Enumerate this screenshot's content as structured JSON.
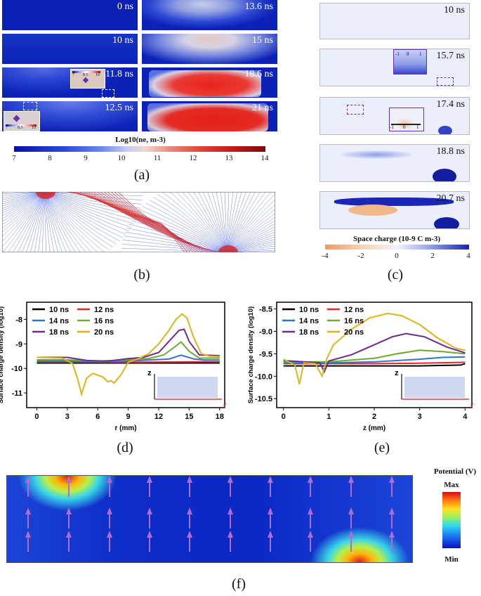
{
  "panel_a": {
    "frames_left": [
      "0 ns",
      "10 ns",
      "11.8 ns",
      "12.5 ns"
    ],
    "frames_right": [
      "13.6 ns",
      "15 ns",
      "18.6 ns",
      "21 ns"
    ],
    "inset_ticks": [
      "7",
      "8.5",
      "10"
    ],
    "colorbar_title": "Log10(ne, m-3)",
    "colorbar_ticks": [
      "7",
      "8",
      "9",
      "10",
      "11",
      "12",
      "13",
      "14"
    ],
    "caption": "(a)"
  },
  "panel_b": {
    "caption": "(b)"
  },
  "panel_c": {
    "frames": [
      "10 ns",
      "15.7 ns",
      "17.4 ns",
      "18.8 ns",
      "20.7 ns"
    ],
    "inset_ticks": [
      "-1",
      "0",
      "1"
    ],
    "colorbar_title": "Space charge (10-9 C m-3)",
    "colorbar_ticks": [
      "-4",
      "-2",
      "0",
      "2",
      "4"
    ],
    "caption": "(c)"
  },
  "chart_data": [
    {
      "type": "line",
      "title": "",
      "xlabel": "r (mm)",
      "ylabel": "Surface charge density (log10)",
      "xlim": [
        -1,
        18.5
      ],
      "ylim": [
        -11.6,
        -7.3
      ],
      "xticks": [
        "0",
        "3",
        "6",
        "9",
        "12",
        "15",
        "18"
      ],
      "yticks": [
        "-8",
        "-9",
        "-10",
        "-11"
      ],
      "axis_icon": [
        "z",
        "r"
      ],
      "caption": "(d)",
      "series": [
        {
          "name": "10 ns",
          "color": "#000000",
          "x": [
            0,
            4,
            8,
            12,
            16,
            18
          ],
          "y": [
            -9.78,
            -9.78,
            -9.78,
            -9.78,
            -9.78,
            -9.78
          ]
        },
        {
          "name": "12 ns",
          "color": "#e8262b",
          "x": [
            0,
            4,
            8,
            12,
            16,
            18
          ],
          "y": [
            -9.74,
            -9.74,
            -9.75,
            -9.74,
            -9.73,
            -9.73
          ]
        },
        {
          "name": "14 ns",
          "color": "#2f73d1",
          "x": [
            0,
            3,
            6,
            9,
            11,
            13,
            14.2,
            15.5,
            16.5,
            18
          ],
          "y": [
            -9.7,
            -9.7,
            -9.72,
            -9.7,
            -9.66,
            -9.62,
            -9.46,
            -9.62,
            -9.66,
            -9.66
          ]
        },
        {
          "name": "16 ns",
          "color": "#6aaa2e",
          "x": [
            0,
            3,
            6,
            9,
            11,
            12.5,
            13.5,
            14.2,
            15,
            16,
            18
          ],
          "y": [
            -9.65,
            -9.65,
            -9.7,
            -9.65,
            -9.6,
            -9.45,
            -9.15,
            -8.92,
            -9.3,
            -9.58,
            -9.58
          ]
        },
        {
          "name": "18 ns",
          "color": "#6f2a8e",
          "x": [
            0,
            3,
            5,
            7,
            9,
            10.5,
            12,
            13,
            14,
            14.5,
            15,
            16,
            18
          ],
          "y": [
            -9.55,
            -9.55,
            -9.68,
            -9.7,
            -9.6,
            -9.55,
            -9.35,
            -8.9,
            -8.45,
            -8.4,
            -8.9,
            -9.45,
            -9.48
          ]
        },
        {
          "name": "20 ns",
          "color": "#e0b31b",
          "x": [
            0,
            2.5,
            3.5,
            4.0,
            4.4,
            4.9,
            5.5,
            6.5,
            7.0,
            7.3,
            7.6,
            8.3,
            9,
            10,
            11,
            12,
            13,
            13.7,
            14.3,
            14.8,
            15.4,
            16.2,
            17,
            18
          ],
          "y": [
            -9.55,
            -9.58,
            -9.8,
            -10.4,
            -11.05,
            -10.4,
            -10.2,
            -10.35,
            -10.55,
            -10.5,
            -10.6,
            -10.25,
            -9.75,
            -9.6,
            -9.4,
            -9.0,
            -8.45,
            -8.0,
            -7.78,
            -7.95,
            -8.7,
            -9.4,
            -9.5,
            -9.52
          ]
        }
      ]
    },
    {
      "type": "line",
      "title": "",
      "xlabel": "z (mm)",
      "ylabel": "Surface charge density (log10)",
      "xlim": [
        -0.15,
        4.15
      ],
      "ylim": [
        -10.7,
        -8.35
      ],
      "xticks": [
        "0",
        "1",
        "2",
        "3",
        "4"
      ],
      "yticks": [
        "-8.5",
        "-9.0",
        "-9.5",
        "-10.0",
        "-10.5"
      ],
      "axis_icon": [
        "z",
        "r"
      ],
      "caption": "(e)",
      "series": [
        {
          "name": "10 ns",
          "color": "#000000",
          "x": [
            0,
            1,
            2,
            3,
            3.9,
            4
          ],
          "y": [
            -9.77,
            -9.77,
            -9.77,
            -9.77,
            -9.75,
            -9.72
          ]
        },
        {
          "name": "12 ns",
          "color": "#e8262b",
          "x": [
            0,
            1,
            2,
            3,
            4
          ],
          "y": [
            -9.72,
            -9.72,
            -9.72,
            -9.71,
            -9.69
          ]
        },
        {
          "name": "14 ns",
          "color": "#2f73d1",
          "x": [
            0,
            1,
            2,
            3,
            3.5,
            4
          ],
          "y": [
            -9.7,
            -9.7,
            -9.68,
            -9.62,
            -9.58,
            -9.57
          ]
        },
        {
          "name": "16 ns",
          "color": "#6aaa2e",
          "x": [
            0,
            1,
            1.5,
            2,
            2.5,
            3,
            3.5,
            4
          ],
          "y": [
            -9.68,
            -9.68,
            -9.64,
            -9.6,
            -9.5,
            -9.42,
            -9.45,
            -9.5
          ]
        },
        {
          "name": "18 ns",
          "color": "#6f2a8e",
          "x": [
            0,
            0.8,
            0.9,
            1.0,
            1.5,
            2,
            2.4,
            2.7,
            3.1,
            3.6,
            4
          ],
          "y": [
            -9.65,
            -9.7,
            -9.9,
            -9.66,
            -9.52,
            -9.3,
            -9.12,
            -9.05,
            -9.12,
            -9.35,
            -9.48
          ]
        },
        {
          "name": "20 ns",
          "color": "#e0b31b",
          "x": [
            0,
            0.25,
            0.35,
            0.45,
            0.7,
            0.85,
            0.95,
            1.1,
            1.5,
            1.9,
            2.3,
            2.6,
            3.0,
            3.4,
            3.8,
            4
          ],
          "y": [
            -9.62,
            -9.75,
            -10.18,
            -9.7,
            -9.72,
            -10.0,
            -9.62,
            -9.3,
            -8.95,
            -8.7,
            -8.6,
            -8.65,
            -8.85,
            -9.15,
            -9.38,
            -9.42
          ]
        }
      ]
    }
  ],
  "panel_f": {
    "colorbar_title": "Potential (V)",
    "max_label": "Max",
    "min_label": "Min",
    "caption": "(f)"
  }
}
